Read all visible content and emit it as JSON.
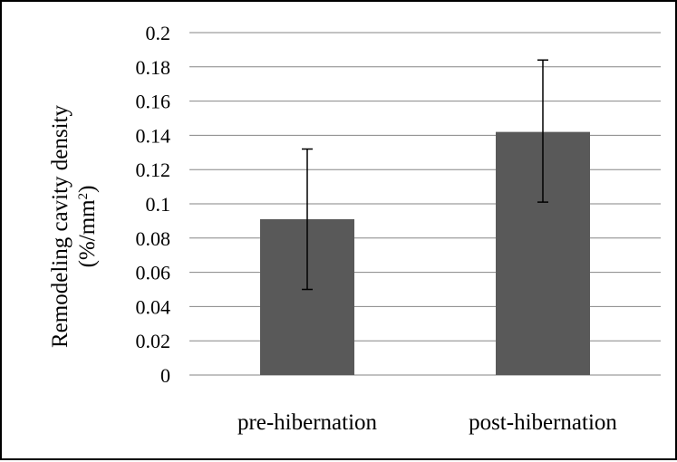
{
  "chart_data": {
    "type": "bar",
    "title": "",
    "xlabel": "",
    "ylabel_line1": "Remodeling cavity density",
    "ylabel_line2": "(%/mm",
    "ylabel_sup": "2",
    "ylabel_close": ")",
    "categories": [
      "pre-hibernation",
      "post-hibernation"
    ],
    "values": [
      0.091,
      0.142
    ],
    "error_low": [
      0.05,
      0.101
    ],
    "error_high": [
      0.132,
      0.184
    ],
    "ylim": [
      0,
      0.2
    ],
    "yticks": [
      "0",
      "0.02",
      "0.04",
      "0.06",
      "0.08",
      "0.1",
      "0.12",
      "0.14",
      "0.16",
      "0.18",
      "0.2"
    ],
    "grid": true,
    "legend": "none",
    "colors": {
      "bar": "#595959",
      "grid": "#868686",
      "axis": "#868686",
      "error": "#000000"
    }
  }
}
